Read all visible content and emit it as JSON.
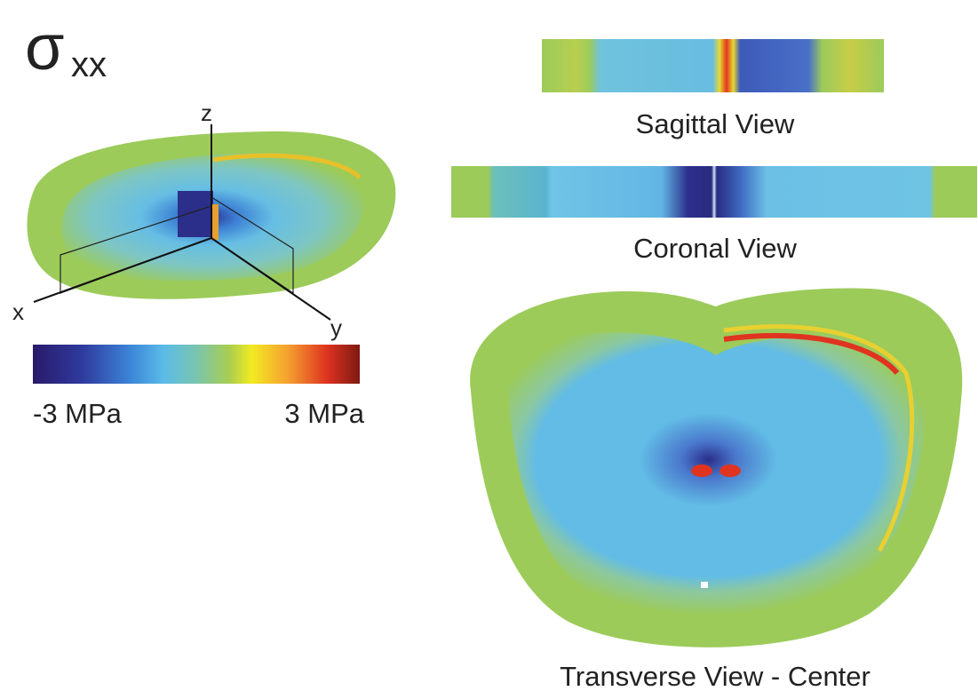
{
  "title": {
    "symbol": "σ",
    "subscript": "xx"
  },
  "isometric_view": {
    "axes": {
      "z": "z",
      "x": "x",
      "y": "y"
    }
  },
  "colorbar": {
    "min_label": "-3 MPa",
    "max_label": "3 MPa"
  },
  "views": [
    {
      "label": "Sagittal View"
    },
    {
      "label": "Coronal View"
    },
    {
      "label": "Transverse View - Center"
    }
  ]
}
